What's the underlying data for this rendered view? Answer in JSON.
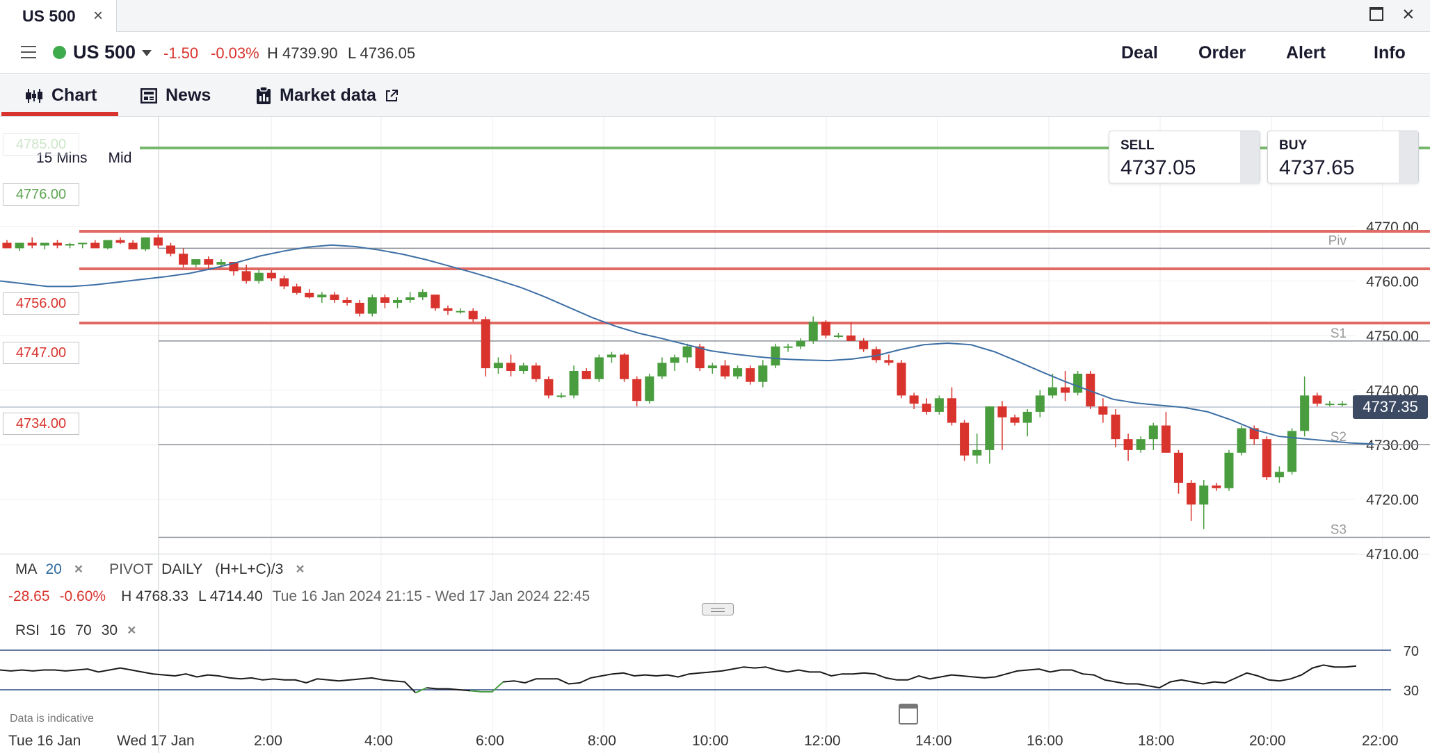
{
  "window": {
    "tab_title": "US 500",
    "close_glyph": "×",
    "maximize_icon": "maximize-icon",
    "close_icon": "close-icon"
  },
  "instrument": {
    "name": "US 500",
    "status_color": "#3daa4b",
    "change": "-1.50",
    "change_pct": "-0.03%",
    "high": "H 4739.90",
    "low": "L 4736.05",
    "actions": [
      "Deal",
      "Order",
      "Alert",
      "Info"
    ]
  },
  "subtabs": [
    {
      "label": "Chart",
      "icon": "candlestick-icon",
      "active": true
    },
    {
      "label": "News",
      "icon": "newspaper-icon",
      "active": false
    },
    {
      "label": "Market data",
      "icon": "clipboard-icon",
      "active": false,
      "external_icon": "external-link-icon"
    }
  ],
  "toolbar": {
    "interval": "15 Mins",
    "price_type": "Mid"
  },
  "quotes": {
    "sell_label": "SELL",
    "sell_value": "4737.05",
    "buy_label": "BUY",
    "buy_value": "4737.65"
  },
  "price_alerts": [
    {
      "label": "4785.00",
      "color": "#76b76b"
    },
    {
      "label": "4776.00",
      "color": "#76b76b"
    },
    {
      "label": "4756.00",
      "color": "#e06a64"
    },
    {
      "label": "4747.00",
      "color": "#e06a64"
    },
    {
      "label": "4734.00",
      "color": "#e06a64"
    }
  ],
  "current_price": "4737.35",
  "indicators": {
    "ma_label": "MA",
    "ma_period": "20",
    "pivot_label": "PIVOT",
    "pivot_period": "DAILY",
    "pivot_formula": "(H+L+C)/3",
    "remove_glyph": "×",
    "range_change": "-28.65",
    "range_change_pct": "-0.60%",
    "range_high": "H 4768.33",
    "range_low": "L 4714.40",
    "range_dates": "Tue 16 Jan 2024 21:15 - Wed 17 Jan 2024 22:45",
    "rsi_label": "RSI",
    "rsi_period": "16",
    "rsi_upper": "70",
    "rsi_lower": "30"
  },
  "disclaimer": "Data is indicative",
  "chart_data": {
    "type": "candlestick",
    "y_ticks": [
      4770,
      4760,
      4750,
      4740,
      4730,
      4720,
      4710
    ],
    "x_labels": [
      "Tue 16 Jan",
      "Wed 17 Jan",
      "2:00",
      "4:00",
      "6:00",
      "8:00",
      "10:00",
      "12:00",
      "14:00",
      "16:00",
      "18:00",
      "20:00",
      "22:00"
    ],
    "pivot_levels": [
      {
        "name": "Piv",
        "value": 4766
      },
      {
        "name": "S1",
        "value": 4749
      },
      {
        "name": "S2",
        "value": 4730
      },
      {
        "name": "S3",
        "value": 4713
      }
    ],
    "candles": [
      [
        4767,
        4767.5,
        4766,
        4766
      ],
      [
        4766,
        4767,
        4765.5,
        4767
      ],
      [
        4767,
        4768,
        4766,
        4766.5
      ],
      [
        4766.5,
        4767,
        4765.8,
        4767
      ],
      [
        4767,
        4767.5,
        4766,
        4766.5
      ],
      [
        4766.5,
        4767,
        4766,
        4766.8
      ],
      [
        4766.8,
        4767,
        4766,
        4767
      ],
      [
        4767,
        4767.5,
        4766,
        4766
      ],
      [
        4766,
        4767.5,
        4765.8,
        4767.5
      ],
      [
        4767.5,
        4768,
        4766.8,
        4767
      ],
      [
        4767,
        4767.5,
        4765.8,
        4765.8
      ],
      [
        4765.8,
        4768,
        4765.5,
        4768
      ],
      [
        4768,
        4768.5,
        4766,
        4766.5
      ],
      [
        4766.5,
        4767,
        4764.5,
        4765
      ],
      [
        4765,
        4766,
        4762.5,
        4763
      ],
      [
        4763,
        4764,
        4762.5,
        4764
      ],
      [
        4764,
        4764.5,
        4762,
        4763
      ],
      [
        4763,
        4764,
        4762.5,
        4763.5
      ],
      [
        4763.5,
        4763.5,
        4761,
        4761.8
      ],
      [
        4761.8,
        4763,
        4759.5,
        4760
      ],
      [
        4760,
        4762,
        4759.5,
        4761.5
      ],
      [
        4761.5,
        4762,
        4760,
        4760.5
      ],
      [
        4760.5,
        4761,
        4758.5,
        4759
      ],
      [
        4759,
        4759.5,
        4757.5,
        4757.8
      ],
      [
        4757.8,
        4758.5,
        4756.8,
        4757
      ],
      [
        4757,
        4758,
        4756,
        4757.5
      ],
      [
        4757.5,
        4758,
        4756,
        4756.5
      ],
      [
        4756.5,
        4757,
        4755.5,
        4756
      ],
      [
        4756,
        4756.5,
        4753.5,
        4754
      ],
      [
        4754,
        4757.5,
        4753.5,
        4757
      ],
      [
        4757,
        4757.5,
        4755,
        4756
      ],
      [
        4756,
        4757,
        4755,
        4756.5
      ],
      [
        4756.5,
        4758,
        4756,
        4757
      ],
      [
        4757,
        4758.5,
        4756.5,
        4758
      ],
      [
        4757.5,
        4757.5,
        4754.5,
        4755
      ],
      [
        4755,
        4755.5,
        4753.8,
        4754.5
      ],
      [
        4754.5,
        4755,
        4754,
        4754.5
      ],
      [
        4754.5,
        4755,
        4752.5,
        4753
      ],
      [
        4753,
        4753.5,
        4742.5,
        4744
      ],
      [
        4744,
        4746,
        4743,
        4745
      ],
      [
        4745,
        4746.5,
        4742.5,
        4743.5
      ],
      [
        4743.5,
        4745,
        4743,
        4744.5
      ],
      [
        4744.5,
        4745,
        4741.5,
        4742
      ],
      [
        4742,
        4742.5,
        4738.5,
        4739
      ],
      [
        4739,
        4739.5,
        4738.5,
        4739
      ],
      [
        4739,
        4744.5,
        4738.5,
        4743.5
      ],
      [
        4743.5,
        4744,
        4742,
        4742
      ],
      [
        4742,
        4746.5,
        4741.5,
        4746
      ],
      [
        4746,
        4747,
        4745,
        4746.5
      ],
      [
        4746.5,
        4746.8,
        4741.5,
        4742
      ],
      [
        4742,
        4742.5,
        4737,
        4738
      ],
      [
        4738,
        4743,
        4737.5,
        4742.5
      ],
      [
        4742.5,
        4746,
        4742,
        4745
      ],
      [
        4745,
        4746.5,
        4743.5,
        4746
      ],
      [
        4746,
        4748.5,
        4745,
        4748
      ],
      [
        4748,
        4748.5,
        4743.5,
        4744
      ],
      [
        4744,
        4745,
        4743,
        4744.5
      ],
      [
        4744.5,
        4745.5,
        4742,
        4742.5
      ],
      [
        4742.5,
        4744.5,
        4742,
        4744
      ],
      [
        4744,
        4744.5,
        4741,
        4741.5
      ],
      [
        4741.5,
        4745.5,
        4740.5,
        4744.5
      ],
      [
        4744.5,
        4748.5,
        4744,
        4748
      ],
      [
        4748,
        4748.5,
        4747,
        4748
      ],
      [
        4748,
        4749.5,
        4747.5,
        4749
      ],
      [
        4749,
        4753.5,
        4748.5,
        4752.5
      ],
      [
        4752.5,
        4752.8,
        4749.5,
        4750
      ],
      [
        4750,
        4750.5,
        4749.5,
        4750
      ],
      [
        4750,
        4752.5,
        4749,
        4749
      ],
      [
        4749,
        4749.5,
        4747,
        4747.5
      ],
      [
        4747.5,
        4748,
        4745,
        4745.5
      ],
      [
        4745.5,
        4746.5,
        4744.5,
        4745
      ],
      [
        4745,
        4745.5,
        4738.5,
        4739
      ],
      [
        4739,
        4739.5,
        4736.5,
        4737.5
      ],
      [
        4737.5,
        4738.5,
        4735.5,
        4736
      ],
      [
        4736,
        4739,
        4735.5,
        4738.5
      ],
      [
        4738.5,
        4740.5,
        4733.5,
        4734
      ],
      [
        4734,
        4734.5,
        4727,
        4728
      ],
      [
        4728,
        4732,
        4726.5,
        4729
      ],
      [
        4729,
        4737,
        4726.5,
        4737
      ],
      [
        4737,
        4738,
        4729,
        4735
      ],
      [
        4735,
        4735.5,
        4733.5,
        4734
      ],
      [
        4734,
        4736.5,
        4731.5,
        4736
      ],
      [
        4736,
        4740,
        4735,
        4739
      ],
      [
        4739,
        4743,
        4738.5,
        4740.5
      ],
      [
        4740.5,
        4743.5,
        4738,
        4739.5
      ],
      [
        4739.5,
        4743.5,
        4739,
        4743
      ],
      [
        4743,
        4743.5,
        4736.5,
        4737
      ],
      [
        4737,
        4738.5,
        4734,
        4735.5
      ],
      [
        4735.5,
        4736.5,
        4729.5,
        4731
      ],
      [
        4731,
        4732,
        4727,
        4729
      ],
      [
        4729,
        4731.5,
        4728.5,
        4731
      ],
      [
        4731,
        4734,
        4729,
        4733.5
      ],
      [
        4733.5,
        4736,
        4728.5,
        4728.5
      ],
      [
        4728.5,
        4729,
        4721,
        4723
      ],
      [
        4723,
        4723.5,
        4716,
        4719
      ],
      [
        4719,
        4723.5,
        4714.5,
        4722.5
      ],
      [
        4722.5,
        4723,
        4721.5,
        4722
      ],
      [
        4722,
        4729,
        4721.5,
        4728.5
      ],
      [
        4728.5,
        4733.5,
        4728,
        4733
      ],
      [
        4733,
        4733.5,
        4730,
        4731
      ],
      [
        4731,
        4731.5,
        4723.5,
        4724
      ],
      [
        4724,
        4726,
        4723,
        4725
      ],
      [
        4725,
        4733,
        4724.5,
        4732.5
      ],
      [
        4732.5,
        4742.5,
        4731.5,
        4739
      ],
      [
        4739,
        4739.5,
        4737,
        4737.5
      ],
      [
        4737.5,
        4738,
        4737,
        4737.5
      ],
      [
        4737.5,
        4738,
        4737,
        4737.5
      ]
    ],
    "ma": [
      4760,
      4759.5,
      4759,
      4759,
      4759.3,
      4759.8,
      4760.3,
      4760.8,
      4761.4,
      4762.3,
      4763.4,
      4764.6,
      4765.5,
      4766.2,
      4766.6,
      4766.3,
      4765.7,
      4764.9,
      4763.9,
      4762.7,
      4761.5,
      4760.2,
      4758.8,
      4757.1,
      4755.2,
      4753.3,
      4751.7,
      4750.4,
      4749.4,
      4748.3,
      4747.2,
      4746.6,
      4746.1,
      4745.7,
      4745.5,
      4745.4,
      4745.7,
      4746.3,
      4747.4,
      4748.3,
      4748.6,
      4748.3,
      4747,
      4745.2,
      4743.3,
      4741.5,
      4739.9,
      4738.3,
      4737.6,
      4737.2,
      4736.8,
      4736,
      4734.5,
      4732.7,
      4731.5,
      4731.1,
      4730.7,
      4730.3,
      4730.1
    ],
    "rsi": [
      50,
      49,
      50,
      49,
      50,
      50,
      49,
      50,
      51,
      48,
      50,
      52,
      50,
      48,
      46,
      45,
      44,
      46,
      43,
      45,
      44,
      42,
      41,
      42,
      40,
      41,
      40,
      40,
      37,
      41,
      40,
      39,
      40,
      41,
      42,
      40,
      39,
      38,
      27,
      32,
      31,
      31,
      30,
      29,
      28,
      28,
      38,
      39,
      37,
      41,
      41,
      41,
      36,
      37,
      42,
      44,
      46,
      47,
      44,
      45,
      44,
      45,
      43,
      46,
      47,
      48,
      49,
      51,
      53,
      52,
      53,
      50,
      48,
      50,
      48,
      48,
      44,
      46,
      46,
      47,
      46,
      42,
      40,
      40,
      44,
      41,
      43,
      45,
      44,
      43,
      42,
      43,
      46,
      49,
      50,
      51,
      48,
      50,
      50,
      46,
      45,
      40,
      38,
      36,
      36,
      34,
      32,
      38,
      40,
      38,
      36,
      38,
      37,
      42,
      47,
      44,
      40,
      39,
      41,
      45,
      52,
      55,
      53,
      53,
      54
    ]
  }
}
